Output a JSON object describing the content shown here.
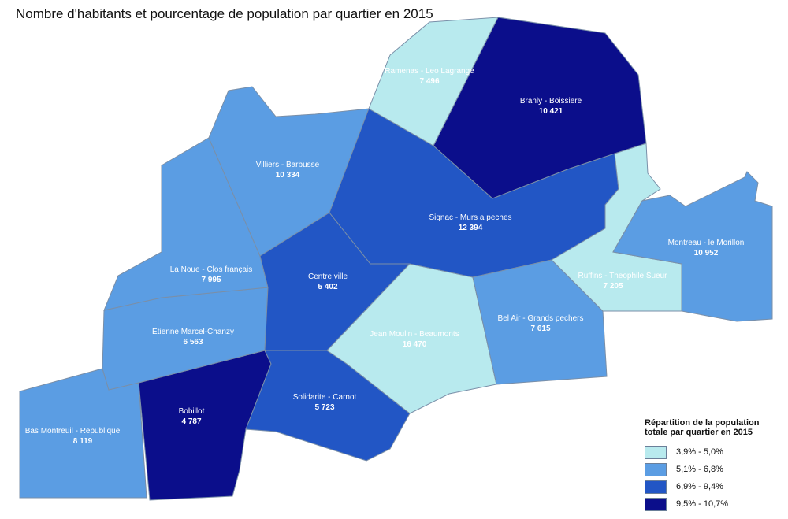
{
  "title": "Nombre d'habitants et  pourcentage de population par quartier en 2015",
  "colors": {
    "c1": "#b8eaee",
    "c2": "#5b9de3",
    "c3": "#2256c5",
    "c4": "#0b0e8b"
  },
  "districts": [
    {
      "id": "bas-montreuil",
      "name": "Bas Montreuil - Republique",
      "pop": "8 119",
      "cls": "c2",
      "dark": false
    },
    {
      "id": "bobillot",
      "name": "Bobillot",
      "pop": "4 787",
      "cls": "c4",
      "dark": true
    },
    {
      "id": "solidarite",
      "name": "Solidarite - Carnot",
      "pop": "5 723",
      "cls": "c3",
      "dark": true
    },
    {
      "id": "etienne-marcel",
      "name": "Etienne Marcel-Chanzy",
      "pop": "6 563",
      "cls": "c2",
      "dark": false
    },
    {
      "id": "la-noue",
      "name": "La Noue - Clos français",
      "pop": "7 995",
      "cls": "c2",
      "dark": false
    },
    {
      "id": "villiers",
      "name": "Villiers - Barbusse",
      "pop": "10 334",
      "cls": "c2",
      "dark": false
    },
    {
      "id": "centre-ville",
      "name": "Centre ville",
      "pop": "5 402",
      "cls": "c3",
      "dark": true
    },
    {
      "id": "jean-moulin",
      "name": "Jean Moulin - Beaumonts",
      "pop": "16 470",
      "cls": "c1",
      "dark": false
    },
    {
      "id": "signac",
      "name": "Signac - Murs a peches",
      "pop": "12 394",
      "cls": "c3",
      "dark": true
    },
    {
      "id": "bel-air",
      "name": "Bel Air - Grands pechers",
      "pop": "7 615",
      "cls": "c2",
      "dark": false
    },
    {
      "id": "ruffins",
      "name": "Ruffins - Theophile Sueur",
      "pop": "7 205",
      "cls": "c1",
      "dark": false
    },
    {
      "id": "montreau",
      "name": "Montreau - le Morillon",
      "pop": "10 952",
      "cls": "c2",
      "dark": false
    },
    {
      "id": "branly",
      "name": "Branly - Boissiere",
      "pop": "10 421",
      "cls": "c4",
      "dark": true
    },
    {
      "id": "ramenas",
      "name": "Ramenas - Leo Lagrange",
      "pop": "7 496",
      "cls": "c1",
      "dark": false
    }
  ],
  "legend": {
    "title_line1": "Répartition de la population",
    "title_line2": "totale par quartier en 2015",
    "items": [
      {
        "label": "3,9% - 5,0%",
        "cls": "c1"
      },
      {
        "label": "5,1% - 6,8%",
        "cls": "c2"
      },
      {
        "label": "6,9% - 9,4%",
        "cls": "c3"
      },
      {
        "label": "9,5% - 10,7%",
        "cls": "c4"
      }
    ]
  }
}
